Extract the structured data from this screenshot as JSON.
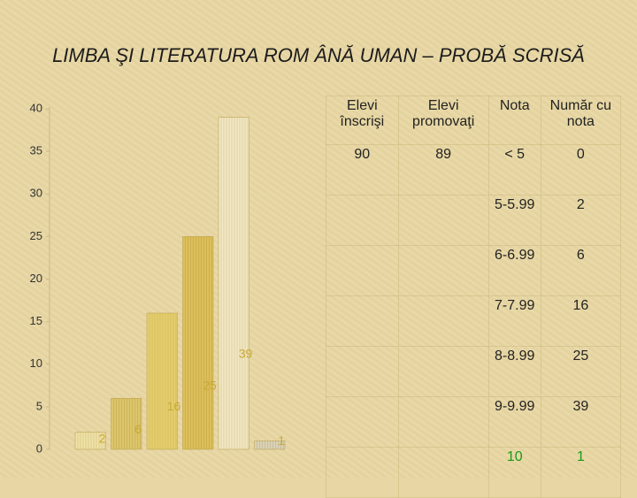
{
  "title": "LIMBA ŞI LITERATURA ROM ÂNĂ UMAN – PROBĂ SCRISĂ",
  "chart_data": {
    "type": "bar",
    "categories": [
      null,
      null,
      null,
      null,
      null,
      null
    ],
    "values": [
      2,
      6,
      16,
      25,
      39,
      1
    ],
    "colors": [
      "#efe2a8",
      "#dcc56a",
      "#e6cf6e",
      "#dcbf5a",
      "#f1e8c4",
      "#d9d2b8"
    ],
    "label_color": "#c9a935",
    "ylim": [
      0,
      40
    ],
    "yticks": [
      0,
      5,
      10,
      15,
      20,
      25,
      30,
      35,
      40
    ]
  },
  "table": {
    "header": [
      "Elevi înscrişi",
      "Elevi promovaţi",
      "Nota",
      "Număr cu nota"
    ],
    "rows": [
      [
        90,
        89,
        "< 5",
        0
      ],
      [
        null,
        null,
        "5-5.99",
        2
      ],
      [
        null,
        null,
        "6-6.99",
        6
      ],
      [
        null,
        null,
        "7-7.99",
        16
      ],
      [
        null,
        null,
        "8-8.99",
        25
      ],
      [
        null,
        null,
        "9-9.99",
        39
      ],
      [
        null,
        null,
        "10",
        1
      ]
    ],
    "highlight_color": "#1a9a1a"
  }
}
